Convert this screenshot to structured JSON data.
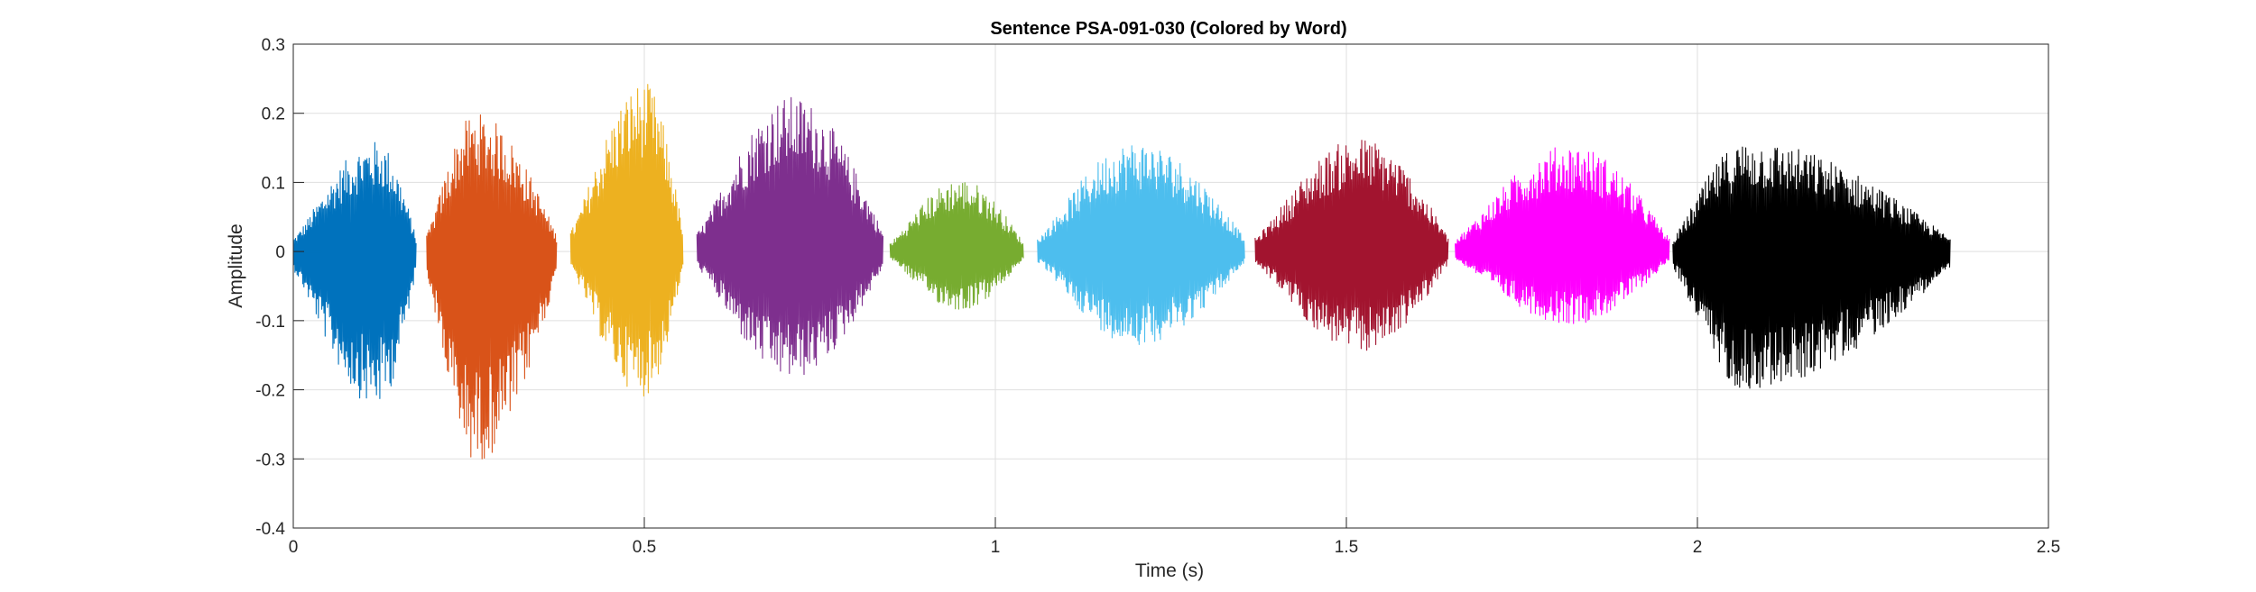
{
  "chart_data": {
    "type": "line",
    "title": "Sentence PSA-091-030 (Colored by Word)",
    "xlabel": "Time (s)",
    "ylabel": "Amplitude",
    "xlim": [
      0,
      2.5
    ],
    "ylim": [
      -0.4,
      0.3
    ],
    "xticks": [
      0,
      0.5,
      1,
      1.5,
      2,
      2.5
    ],
    "xtick_labels": [
      "0",
      "0.5",
      "1",
      "1.5",
      "2",
      "2.5"
    ],
    "yticks": [
      -0.4,
      -0.3,
      -0.2,
      -0.1,
      0,
      0.1,
      0.2,
      0.3
    ],
    "ytick_labels": [
      "-0.4",
      "-0.3",
      "-0.2",
      "-0.1",
      "0",
      "0.1",
      "0.2",
      "0.3"
    ],
    "grid": true,
    "series": [
      {
        "color": "#0072BD",
        "start": 0.0,
        "end": 0.175,
        "peak_time": 0.12,
        "max": 0.16,
        "min": -0.225
      },
      {
        "color": "#D95319",
        "start": 0.19,
        "end": 0.375,
        "peak_time": 0.26,
        "max": 0.2,
        "min": -0.305
      },
      {
        "color": "#EDB120",
        "start": 0.395,
        "end": 0.555,
        "peak_time": 0.5,
        "max": 0.245,
        "min": -0.21
      },
      {
        "color": "#7E2F8E",
        "start": 0.575,
        "end": 0.84,
        "peak_time": 0.71,
        "max": 0.225,
        "min": -0.185
      },
      {
        "color": "#77AC30",
        "start": 0.85,
        "end": 1.04,
        "peak_time": 0.95,
        "max": 0.105,
        "min": -0.085
      },
      {
        "color": "#4DBEEE",
        "start": 1.06,
        "end": 1.355,
        "peak_time": 1.2,
        "max": 0.16,
        "min": -0.135
      },
      {
        "color": "#A2142F",
        "start": 1.37,
        "end": 1.645,
        "peak_time": 1.52,
        "max": 0.165,
        "min": -0.145
      },
      {
        "color": "#FF00FF",
        "start": 1.655,
        "end": 1.96,
        "peak_time": 1.82,
        "max": 0.155,
        "min": -0.105
      },
      {
        "color": "#000000",
        "start": 1.965,
        "end": 2.36,
        "peak_time": 2.07,
        "max": 0.16,
        "min": -0.2
      }
    ]
  }
}
